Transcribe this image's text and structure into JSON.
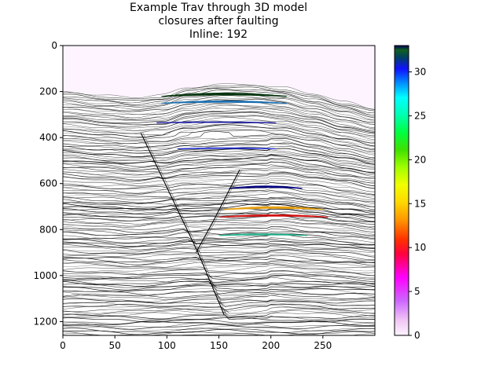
{
  "chart_data": {
    "type": "heatmap",
    "title_lines": [
      "Example Trav through 3D model",
      "closures after faulting",
      "Inline: 192"
    ],
    "xlabel": "",
    "ylabel": "",
    "xlim": [
      0,
      300
    ],
    "ylim": [
      1260,
      0
    ],
    "x_ticks": [
      0,
      50,
      100,
      150,
      200,
      250
    ],
    "y_ticks": [
      0,
      200,
      400,
      600,
      800,
      1000,
      1200
    ],
    "grid": false,
    "colorbar": {
      "range": [
        0,
        33
      ],
      "ticks": [
        0,
        5,
        10,
        15,
        20,
        25,
        30
      ],
      "colormap": "gist_ncar_r"
    },
    "background_color": "#fdf4ff",
    "horizon_color": "#000000",
    "top_surface": [
      [
        0,
        200
      ],
      [
        40,
        215
      ],
      [
        70,
        225
      ],
      [
        95,
        215
      ],
      [
        120,
        185
      ],
      [
        150,
        168
      ],
      [
        180,
        168
      ],
      [
        210,
        180
      ],
      [
        240,
        210
      ],
      [
        270,
        245
      ],
      [
        300,
        275
      ]
    ],
    "faults": [
      {
        "name": "",
        "points": [
          [
            75,
            380
          ],
          [
            130,
            900
          ],
          [
            155,
            1170
          ]
        ]
      },
      {
        "name": "",
        "points": [
          [
            170,
            540
          ],
          [
            145,
            760
          ],
          [
            128,
            900
          ]
        ]
      }
    ],
    "closures": [
      {
        "value": 32,
        "color": "#06360f",
        "x": [
          95,
          215
        ],
        "depth": 220,
        "amp": 14
      },
      {
        "value": 29,
        "color": "#1a6fb0",
        "x": [
          95,
          215
        ],
        "depth": 250,
        "amp": 10
      },
      {
        "value": 31,
        "color": "#1c1ca8",
        "x": [
          90,
          205
        ],
        "depth": 335,
        "amp": 4
      },
      {
        "value": 31,
        "color": "#1c2ad0",
        "x": [
          110,
          205
        ],
        "depth": 448,
        "amp": 4
      },
      {
        "value": 33,
        "color": "#000080",
        "x": [
          160,
          230
        ],
        "depth": 620,
        "amp": 10
      },
      {
        "value": 13,
        "color": "#e8a010",
        "x": [
          155,
          250
        ],
        "depth": 712,
        "amp": 12
      },
      {
        "value": 10,
        "color": "#d01010",
        "x": [
          150,
          255
        ],
        "depth": 745,
        "amp": 10
      },
      {
        "value": 24,
        "color": "#20b088",
        "x": [
          150,
          235
        ],
        "depth": 825,
        "amp": 7
      }
    ]
  }
}
